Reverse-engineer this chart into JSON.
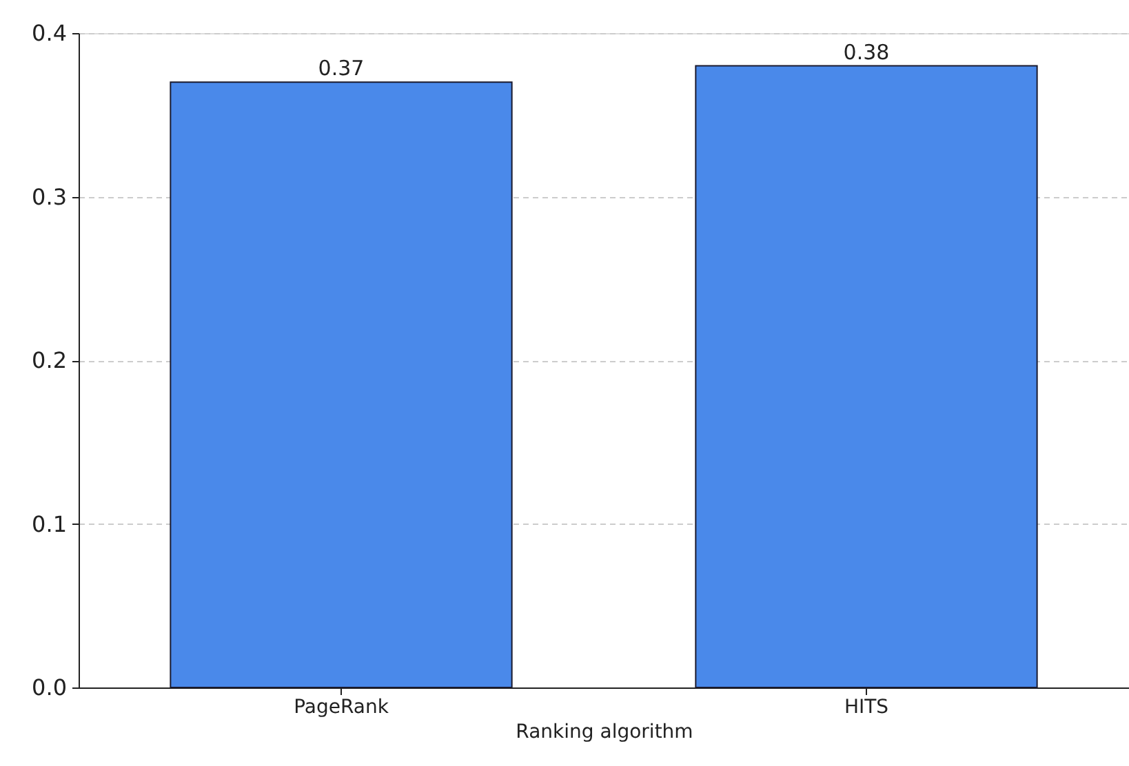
{
  "chart_data": {
    "type": "bar",
    "xlabel": "Ranking algorithm",
    "categories": [
      "PageRank",
      "HITS"
    ],
    "values": [
      0.37,
      0.38
    ],
    "color": "#4a89ea",
    "ylim": [
      0,
      0.4
    ],
    "yticks": [
      {
        "value": 0,
        "label": "0.0"
      },
      0.1,
      0.2,
      0.3,
      0.4
    ],
    "grid": "y",
    "data_labels": true
  }
}
